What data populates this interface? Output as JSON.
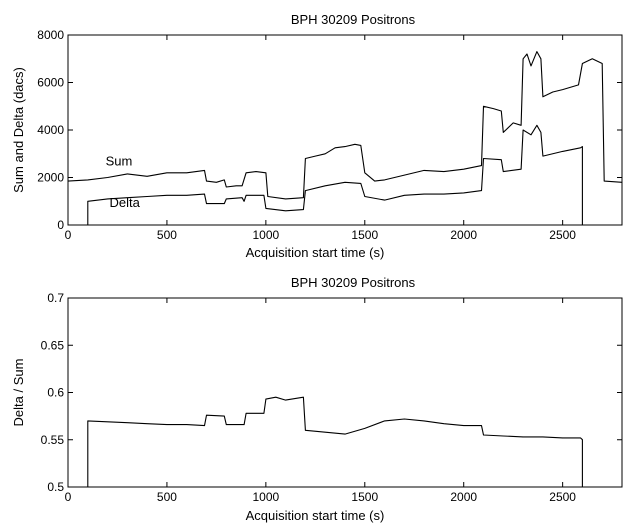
{
  "chart_data": [
    {
      "type": "line",
      "title": "BPH 30209   Positrons",
      "xlabel": "Acquisition start time (s)",
      "ylabel": "Sum and Delta (dacs)",
      "xlim": [
        0,
        2800
      ],
      "ylim": [
        0,
        8000
      ],
      "xticks": [
        0,
        500,
        1000,
        1500,
        2000,
        2500
      ],
      "yticks": [
        0,
        2000,
        4000,
        6000,
        8000
      ],
      "grid": false,
      "legend": "none",
      "annotations": [
        {
          "text": "Sum",
          "x": 190,
          "y": 2500
        },
        {
          "text": "Delta",
          "x": 210,
          "y": 750
        }
      ],
      "series": [
        {
          "name": "Sum",
          "points": [
            [
              0,
              1850
            ],
            [
              100,
              1900
            ],
            [
              200,
              2000
            ],
            [
              300,
              2150
            ],
            [
              400,
              2050
            ],
            [
              500,
              2200
            ],
            [
              600,
              2200
            ],
            [
              690,
              2300
            ],
            [
              700,
              1850
            ],
            [
              750,
              1800
            ],
            [
              790,
              1900
            ],
            [
              800,
              1600
            ],
            [
              850,
              1650
            ],
            [
              880,
              1650
            ],
            [
              900,
              2200
            ],
            [
              950,
              2250
            ],
            [
              1000,
              2200
            ],
            [
              1010,
              1200
            ],
            [
              1100,
              1100
            ],
            [
              1190,
              1150
            ],
            [
              1200,
              2800
            ],
            [
              1250,
              2900
            ],
            [
              1300,
              3000
            ],
            [
              1350,
              3250
            ],
            [
              1400,
              3300
            ],
            [
              1450,
              3400
            ],
            [
              1480,
              3350
            ],
            [
              1500,
              2200
            ],
            [
              1550,
              1850
            ],
            [
              1600,
              1900
            ],
            [
              1700,
              2100
            ],
            [
              1800,
              2300
            ],
            [
              1900,
              2250
            ],
            [
              2000,
              2350
            ],
            [
              2090,
              2500
            ],
            [
              2100,
              5000
            ],
            [
              2150,
              4900
            ],
            [
              2190,
              4800
            ],
            [
              2200,
              3900
            ],
            [
              2250,
              4300
            ],
            [
              2290,
              4200
            ],
            [
              2300,
              7000
            ],
            [
              2320,
              7200
            ],
            [
              2340,
              6700
            ],
            [
              2370,
              7300
            ],
            [
              2390,
              7000
            ],
            [
              2400,
              5400
            ],
            [
              2450,
              5600
            ],
            [
              2500,
              5700
            ],
            [
              2580,
              5900
            ],
            [
              2600,
              6800
            ],
            [
              2650,
              7000
            ],
            [
              2700,
              6800
            ],
            [
              2710,
              1850
            ],
            [
              2800,
              1800
            ]
          ]
        },
        {
          "name": "Delta",
          "points": [
            [
              100,
              0
            ],
            [
              100,
              1000
            ],
            [
              200,
              1100
            ],
            [
              300,
              1150
            ],
            [
              400,
              1200
            ],
            [
              500,
              1250
            ],
            [
              600,
              1250
            ],
            [
              690,
              1300
            ],
            [
              700,
              900
            ],
            [
              790,
              900
            ],
            [
              800,
              1100
            ],
            [
              880,
              1150
            ],
            [
              890,
              1000
            ],
            [
              900,
              1250
            ],
            [
              990,
              1250
            ],
            [
              1000,
              700
            ],
            [
              1100,
              600
            ],
            [
              1190,
              650
            ],
            [
              1200,
              1450
            ],
            [
              1300,
              1650
            ],
            [
              1400,
              1800
            ],
            [
              1480,
              1750
            ],
            [
              1500,
              1200
            ],
            [
              1600,
              1050
            ],
            [
              1700,
              1250
            ],
            [
              1800,
              1300
            ],
            [
              1900,
              1300
            ],
            [
              2000,
              1350
            ],
            [
              2090,
              1450
            ],
            [
              2100,
              2800
            ],
            [
              2190,
              2750
            ],
            [
              2200,
              2250
            ],
            [
              2290,
              2350
            ],
            [
              2300,
              4000
            ],
            [
              2340,
              3800
            ],
            [
              2370,
              4200
            ],
            [
              2390,
              3900
            ],
            [
              2400,
              2900
            ],
            [
              2500,
              3100
            ],
            [
              2590,
              3250
            ],
            [
              2600,
              3300
            ],
            [
              2600,
              0
            ]
          ]
        }
      ]
    },
    {
      "type": "line",
      "title": "BPH 30209   Positrons",
      "xlabel": "Acquisition start time (s)",
      "ylabel": "Delta / Sum",
      "xlim": [
        0,
        2800
      ],
      "ylim": [
        0.5,
        0.7
      ],
      "xticks": [
        0,
        500,
        1000,
        1500,
        2000,
        2500
      ],
      "yticks": [
        0.5,
        0.55,
        0.6,
        0.65,
        0.7
      ],
      "grid": false,
      "legend": "none",
      "series": [
        {
          "name": "Delta / Sum",
          "points": [
            [
              100,
              0.5
            ],
            [
              100,
              0.57
            ],
            [
              200,
              0.569
            ],
            [
              300,
              0.568
            ],
            [
              400,
              0.567
            ],
            [
              500,
              0.566
            ],
            [
              600,
              0.566
            ],
            [
              690,
              0.565
            ],
            [
              700,
              0.576
            ],
            [
              790,
              0.575
            ],
            [
              800,
              0.566
            ],
            [
              890,
              0.566
            ],
            [
              900,
              0.578
            ],
            [
              990,
              0.578
            ],
            [
              1000,
              0.593
            ],
            [
              1050,
              0.595
            ],
            [
              1100,
              0.592
            ],
            [
              1190,
              0.595
            ],
            [
              1200,
              0.56
            ],
            [
              1300,
              0.558
            ],
            [
              1400,
              0.556
            ],
            [
              1500,
              0.562
            ],
            [
              1600,
              0.57
            ],
            [
              1700,
              0.572
            ],
            [
              1800,
              0.57
            ],
            [
              1900,
              0.567
            ],
            [
              2000,
              0.565
            ],
            [
              2090,
              0.565
            ],
            [
              2100,
              0.555
            ],
            [
              2200,
              0.554
            ],
            [
              2300,
              0.553
            ],
            [
              2400,
              0.553
            ],
            [
              2500,
              0.552
            ],
            [
              2590,
              0.552
            ],
            [
              2600,
              0.55
            ],
            [
              2600,
              0.5
            ]
          ]
        }
      ]
    }
  ]
}
